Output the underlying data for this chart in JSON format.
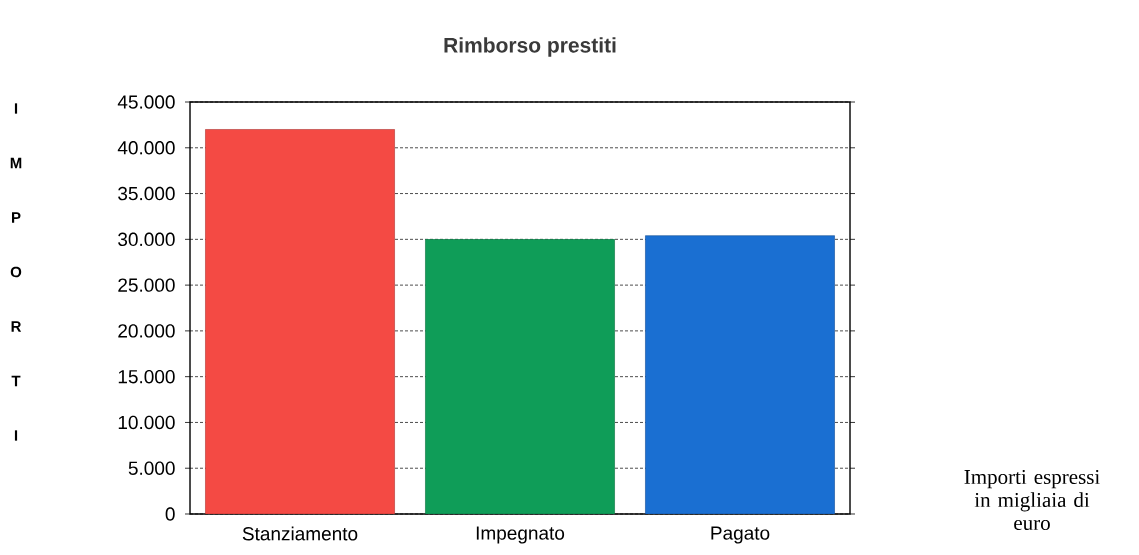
{
  "chart_data": {
    "type": "bar",
    "title": "Rimborso prestiti",
    "ylabel": "IMPORTI",
    "categories": [
      "Stanziamento",
      "Impegnato",
      "Pagato"
    ],
    "values": [
      42000,
      30000,
      30400
    ],
    "colors": [
      "#f44a44",
      "#0f9d58",
      "#1a6fd2"
    ],
    "ylim": [
      0,
      45000
    ],
    "yticks": [
      0,
      {
        "value": 5000,
        "label": "5.000"
      },
      {
        "value": 10000,
        "label": "10.000"
      },
      {
        "value": 15000,
        "label": "15.000"
      },
      {
        "value": 20000,
        "label": "20.000"
      },
      {
        "value": 25000,
        "label": "25.000"
      },
      {
        "value": 30000,
        "label": "30.000"
      },
      {
        "value": 35000,
        "label": "35.000"
      },
      {
        "value": 40000,
        "label": "40.000"
      },
      {
        "value": 45000,
        "label": "45.000"
      }
    ],
    "grid": "y",
    "annotations": [
      "Importi espressi in migliaia di euro"
    ]
  }
}
